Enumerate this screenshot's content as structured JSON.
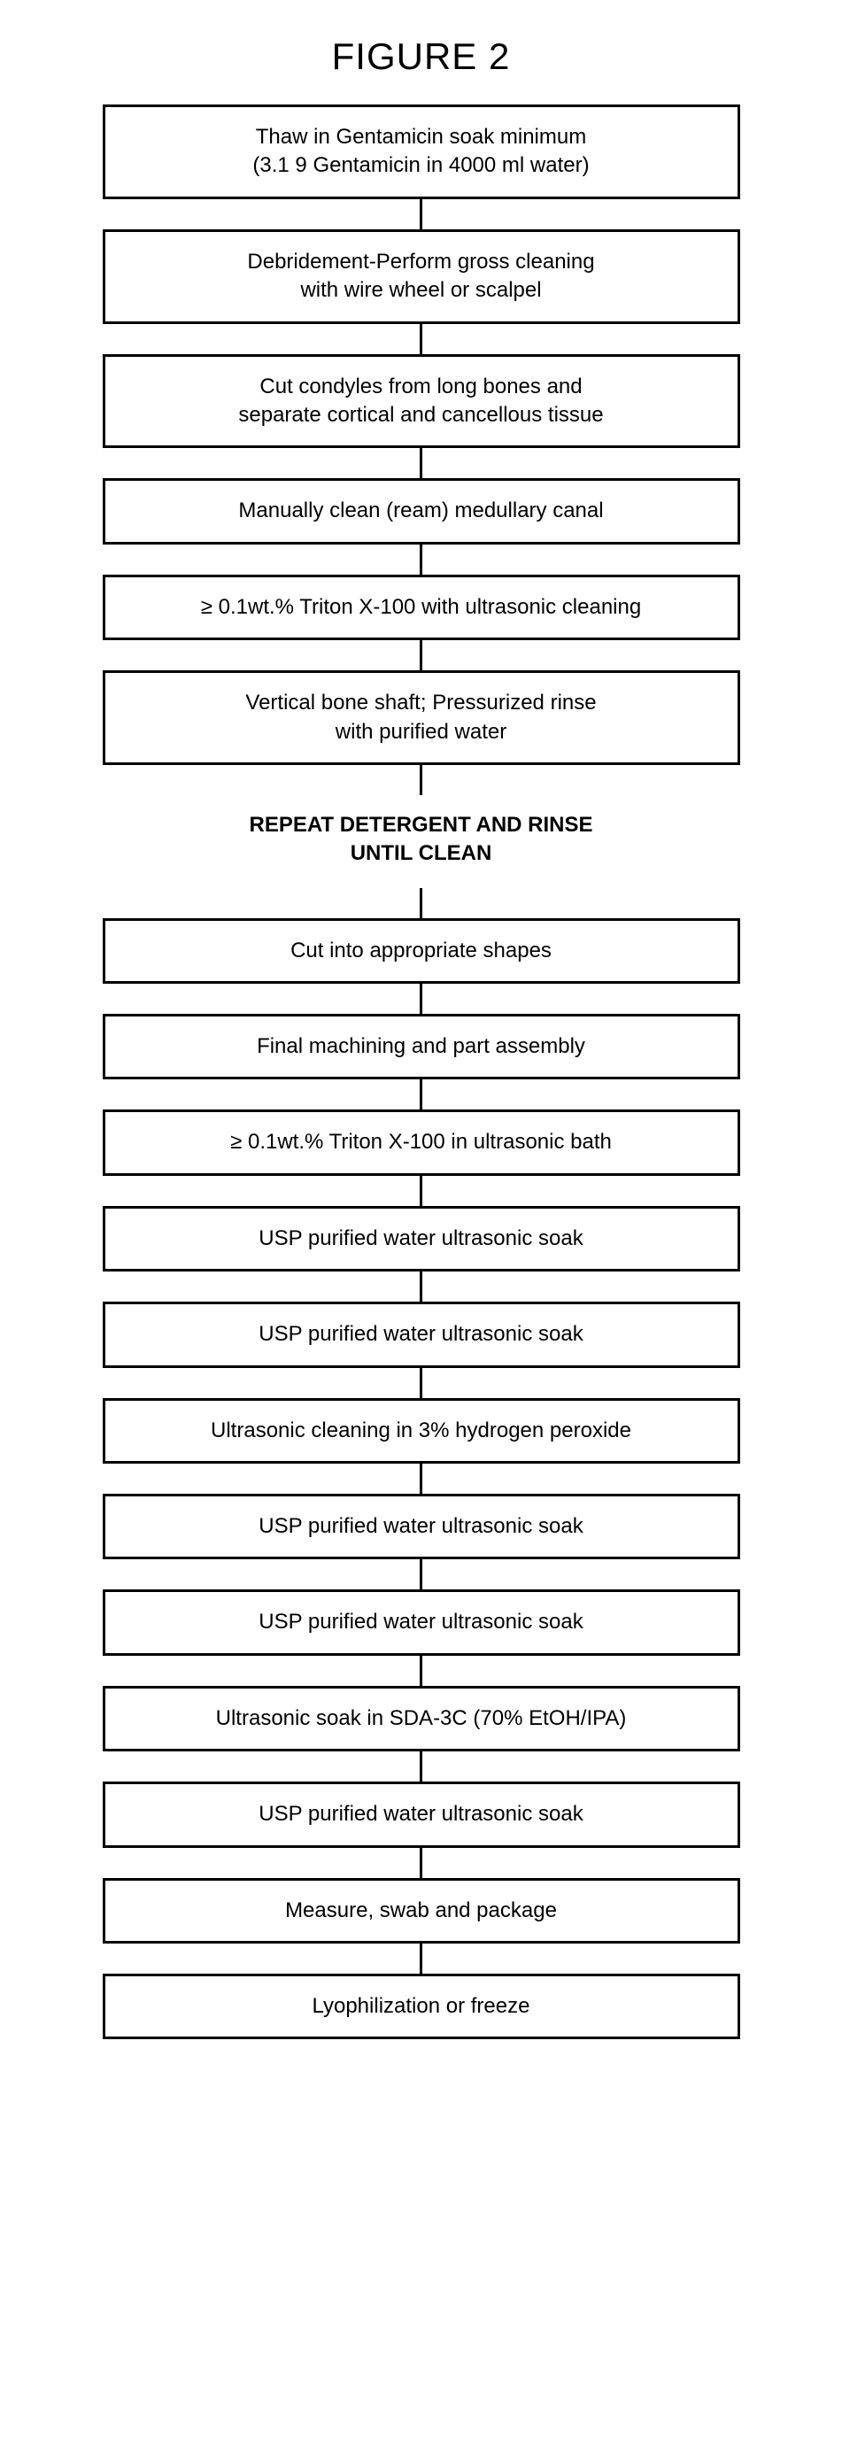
{
  "title": "FIGURE 2",
  "diagram": {
    "type": "flowchart",
    "direction": "vertical",
    "box_border_color": "#000000",
    "box_border_width": 3,
    "box_background": "#ffffff",
    "connector_color": "#000000",
    "connector_width": 3,
    "connector_height": 34,
    "font_family": "Arial",
    "title_fontsize": 42,
    "step_fontsize": 24,
    "steps": [
      {
        "lines": [
          "Thaw in Gentamicin soak minimum",
          "(3.1 9 Gentamicin in 4000 ml water)"
        ],
        "boxed": true
      },
      {
        "lines": [
          "Debridement-Perform gross cleaning",
          "with wire wheel or scalpel"
        ],
        "boxed": true
      },
      {
        "lines": [
          "Cut condyles from long bones and",
          "separate cortical and cancellous tissue"
        ],
        "boxed": true
      },
      {
        "lines": [
          "Manually clean (ream) medullary canal"
        ],
        "boxed": true
      },
      {
        "lines": [
          "≥ 0.1wt.% Triton X-100 with ultrasonic cleaning"
        ],
        "boxed": true
      },
      {
        "lines": [
          "Vertical bone shaft; Pressurized rinse",
          "with purified water"
        ],
        "boxed": true
      },
      {
        "lines": [
          "REPEAT DETERGENT AND RINSE",
          "UNTIL CLEAN"
        ],
        "boxed": false,
        "bold": true
      },
      {
        "lines": [
          "Cut into appropriate shapes"
        ],
        "boxed": true
      },
      {
        "lines": [
          "Final machining and part assembly"
        ],
        "boxed": true
      },
      {
        "lines": [
          "≥ 0.1wt.% Triton X-100 in ultrasonic bath"
        ],
        "boxed": true
      },
      {
        "lines": [
          "USP purified water ultrasonic soak"
        ],
        "boxed": true
      },
      {
        "lines": [
          "USP purified water ultrasonic soak"
        ],
        "boxed": true
      },
      {
        "lines": [
          "Ultrasonic cleaning in 3% hydrogen peroxide"
        ],
        "boxed": true
      },
      {
        "lines": [
          "USP purified water ultrasonic soak"
        ],
        "boxed": true
      },
      {
        "lines": [
          "USP purified water ultrasonic soak"
        ],
        "boxed": true
      },
      {
        "lines": [
          "Ultrasonic soak in SDA-3C (70% EtOH/IPA)"
        ],
        "boxed": true
      },
      {
        "lines": [
          "USP purified water ultrasonic soak"
        ],
        "boxed": true
      },
      {
        "lines": [
          "Measure, swab and package"
        ],
        "boxed": true
      },
      {
        "lines": [
          "Lyophilization or freeze"
        ],
        "boxed": true
      }
    ]
  }
}
